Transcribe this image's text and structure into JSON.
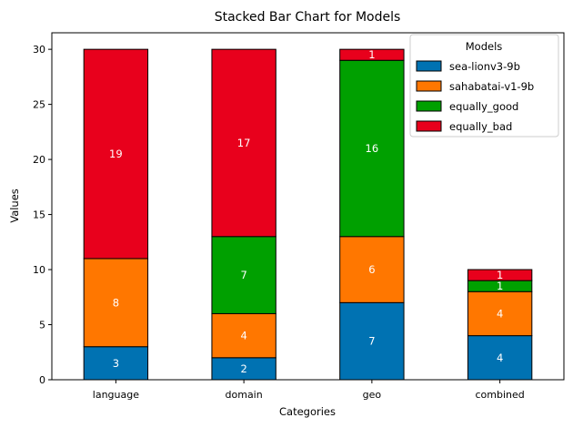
{
  "chart_data": {
    "type": "bar",
    "stacked": true,
    "title": "Stacked Bar Chart for Models",
    "xlabel": "Categories",
    "ylabel": "Values",
    "categories": [
      "language",
      "domain",
      "geo",
      "combined"
    ],
    "ylim": [
      0,
      31.5
    ],
    "yticks": [
      0,
      5,
      10,
      15,
      20,
      25,
      30
    ],
    "grid": false,
    "legend": {
      "title": "Models",
      "placement": "top-right"
    },
    "series": [
      {
        "name": "sea-lionv3-9b",
        "color": "#0072b2",
        "values": [
          3,
          2,
          7,
          4
        ],
        "labels": [
          "3",
          "2",
          "7",
          "4"
        ]
      },
      {
        "name": "sahabatai-v1-9b",
        "color": "#ff7700",
        "values": [
          8,
          4,
          6,
          4
        ],
        "labels": [
          "8",
          "4",
          "6",
          "4"
        ]
      },
      {
        "name": "equally_good",
        "color": "#00a000",
        "values": [
          0,
          7,
          16,
          1
        ],
        "labels": [
          "",
          "7",
          "16",
          "1"
        ]
      },
      {
        "name": "equally_bad",
        "color": "#e8001c",
        "values": [
          19,
          17,
          1,
          1
        ],
        "labels": [
          "19",
          "17",
          "1",
          "1"
        ]
      }
    ]
  }
}
